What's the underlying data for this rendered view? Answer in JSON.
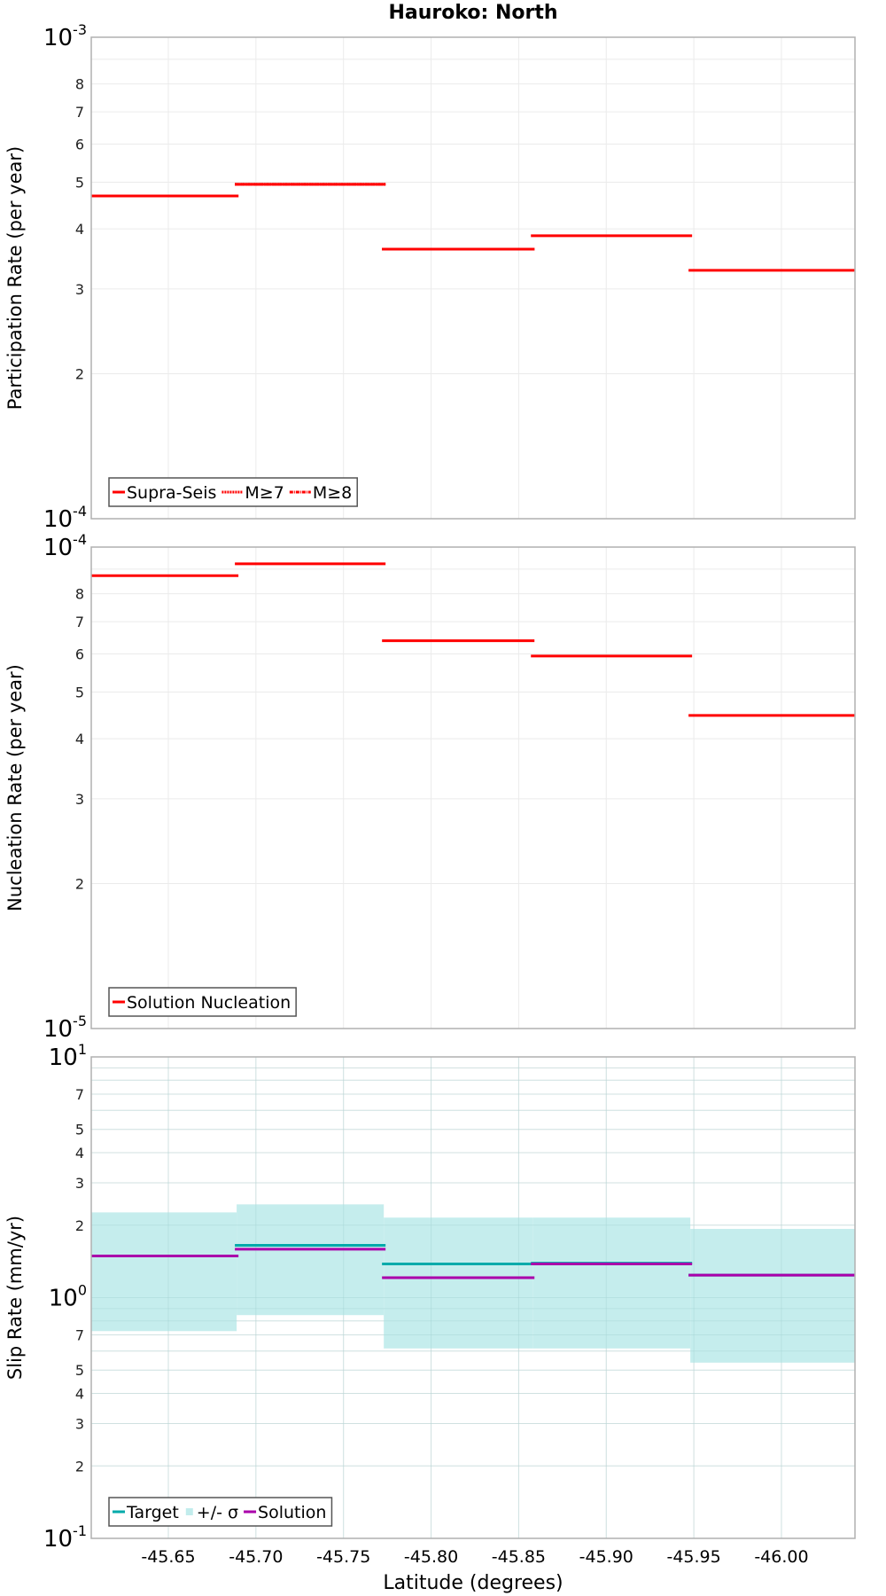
{
  "title": "Hauroko: North",
  "colors": {
    "supra_seis": "#ff0000",
    "target": "#00aaaa",
    "sigma_band": "#c2ecec",
    "solution": "#aa00aa",
    "grid": "#ebebeb",
    "frame": "#b0b0b0",
    "legend_border": "#555555"
  },
  "x_axis": {
    "label": "Latitude (degrees)",
    "range": [
      -45.606,
      -46.042
    ],
    "ticks": [
      -45.65,
      -45.7,
      -45.75,
      -45.8,
      -45.85,
      -45.9,
      -45.95,
      -46.0
    ],
    "tick_labels": [
      "-45.65",
      "-45.70",
      "-45.75",
      "-45.80",
      "-45.85",
      "-45.90",
      "-45.95",
      "-46.00"
    ]
  },
  "chart_data": [
    {
      "type": "line",
      "title": "Hauroko: North",
      "subplot": "participation",
      "ylabel": "Participation Rate (per year)",
      "xlabel": "Latitude (degrees)",
      "yscale": "log",
      "ylim": [
        0.0001,
        0.001
      ],
      "y_decade_labels": [
        {
          "base": "10",
          "exp": "-3",
          "value": 0.001
        },
        {
          "base": "10",
          "exp": "-4",
          "value": 0.0001
        }
      ],
      "y_minor_labels": [
        "2",
        "3",
        "4",
        "5",
        "6",
        "7",
        "8"
      ],
      "grid": true,
      "legend_position": "lower left",
      "legend": [
        "Supra-Seis",
        "M≥7",
        "M≥8"
      ],
      "step_edges": [
        -45.606,
        -45.689,
        -45.773,
        -45.858,
        -45.948,
        -46.042
      ],
      "series": [
        {
          "name": "Supra-Seis",
          "style": "solid",
          "values": [
            0.000468,
            0.000495,
            0.000363,
            0.000387,
            0.000328
          ]
        },
        {
          "name": "M≥7",
          "style": "dotted",
          "values": [
            0.000468,
            0.000495,
            0.000363,
            null,
            null
          ]
        },
        {
          "name": "M≥8",
          "style": "dashdot",
          "values": [
            0.000468,
            0.000495,
            0.000363,
            null,
            null
          ]
        }
      ]
    },
    {
      "type": "line",
      "subplot": "nucleation",
      "ylabel": "Nucleation Rate (per year)",
      "xlabel": "Latitude (degrees)",
      "yscale": "log",
      "ylim": [
        1e-05,
        0.0001
      ],
      "y_decade_labels": [
        {
          "base": "10",
          "exp": "-4",
          "value": 0.0001
        },
        {
          "base": "10",
          "exp": "-5",
          "value": 1e-05
        }
      ],
      "y_minor_labels": [
        "2",
        "3",
        "4",
        "5",
        "6",
        "7",
        "8"
      ],
      "grid": true,
      "legend_position": "lower left",
      "legend": [
        "Solution Nucleation"
      ],
      "step_edges": [
        -45.606,
        -45.689,
        -45.773,
        -45.858,
        -45.948,
        -46.042
      ],
      "series": [
        {
          "name": "Solution Nucleation",
          "style": "solid",
          "values": [
            8.72e-05,
            9.23e-05,
            6.39e-05,
            5.94e-05,
            4.47e-05
          ]
        }
      ]
    },
    {
      "type": "line",
      "subplot": "slip_rate",
      "ylabel": "Slip Rate (mm/yr)",
      "xlabel": "Latitude (degrees)",
      "yscale": "log",
      "ylim": [
        0.1,
        10
      ],
      "y_decade_labels": [
        {
          "base": "10",
          "exp": "1",
          "value": 10
        },
        {
          "base": "10",
          "exp": "0",
          "value": 1
        },
        {
          "base": "10",
          "exp": "-1",
          "value": 0.1
        }
      ],
      "y_minor_labels": [
        "7",
        "5",
        "4",
        "3",
        "2"
      ],
      "grid": true,
      "legend_position": "lower left",
      "legend": [
        "Target",
        "+/- σ",
        "Solution"
      ],
      "step_edges": [
        -45.606,
        -45.689,
        -45.773,
        -45.858,
        -45.948,
        -46.042
      ],
      "series": [
        {
          "name": "+/- σ",
          "style": "band",
          "upper": [
            2.26,
            2.44,
            2.15,
            2.15,
            1.93
          ],
          "lower": [
            0.726,
            0.846,
            0.615,
            0.615,
            0.537
          ]
        },
        {
          "name": "Target",
          "style": "solid",
          "values": [
            1.49,
            1.65,
            1.38,
            1.39,
            1.24
          ]
        },
        {
          "name": "Solution",
          "style": "solid",
          "values": [
            1.49,
            1.59,
            1.21,
            1.38,
            1.24
          ]
        }
      ]
    }
  ]
}
